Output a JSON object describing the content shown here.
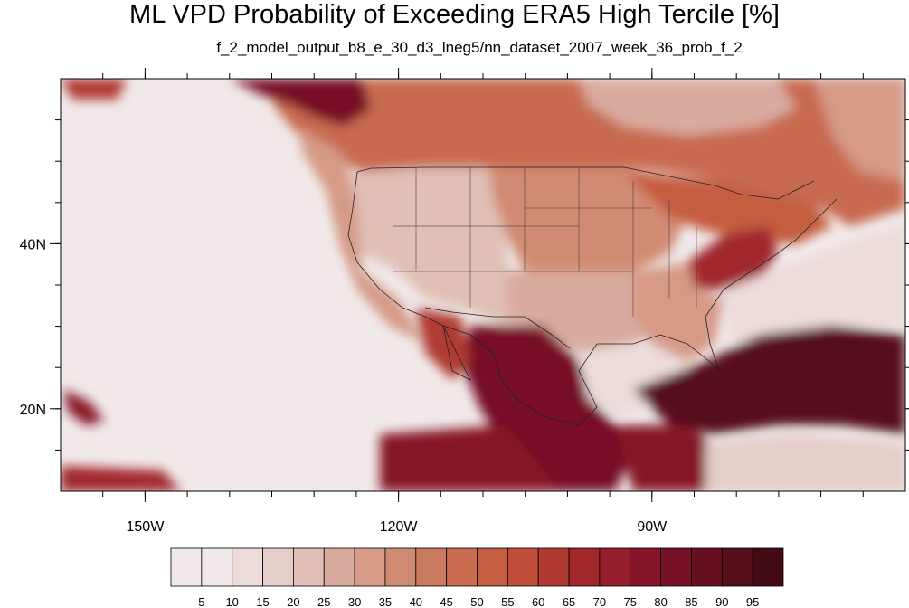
{
  "map": {
    "title": "ML VPD Probability of Exceeding ERA5 High Tercile [%]",
    "subtitle": "f_2_model_output_b8_e_30_d3_lneg5/nn_dataset_2007_week_36_prob_f_2",
    "lon_range": [
      -160,
      -60
    ],
    "lat_range": [
      10,
      60
    ],
    "lon_ticks": [
      {
        "value": -150,
        "label": "150W"
      },
      {
        "value": -120,
        "label": "120W"
      },
      {
        "value": -90,
        "label": "90W"
      }
    ],
    "lat_ticks": [
      {
        "value": 40,
        "label": "40N"
      },
      {
        "value": 20,
        "label": "20N"
      }
    ]
  },
  "colorbar": {
    "labels": [
      "5",
      "10",
      "15",
      "20",
      "25",
      "30",
      "35",
      "40",
      "45",
      "50",
      "55",
      "60",
      "65",
      "70",
      "75",
      "80",
      "85",
      "90",
      "95"
    ],
    "colors": [
      "#f1e9e9",
      "#ecdcda",
      "#e5cdc8",
      "#e0bfb6",
      "#d9ab9f",
      "#d69a87",
      "#d18b72",
      "#ca7b5f",
      "#c86b4f",
      "#c55d40",
      "#be4c36",
      "#b03a32",
      "#a2272d",
      "#961d2c",
      "#861428",
      "#771125",
      "#661020",
      "#560e1a",
      "#430a14"
    ],
    "range": [
      0,
      100
    ]
  },
  "regions": {
    "background_level": "0-5",
    "pacific_ocean": "0-5",
    "canada_north": "45-55",
    "mexico_central_america": "80-100",
    "atlantic_subtropics": "85-100",
    "us_west_interior": "15-30",
    "appalachians": "65-75"
  }
}
